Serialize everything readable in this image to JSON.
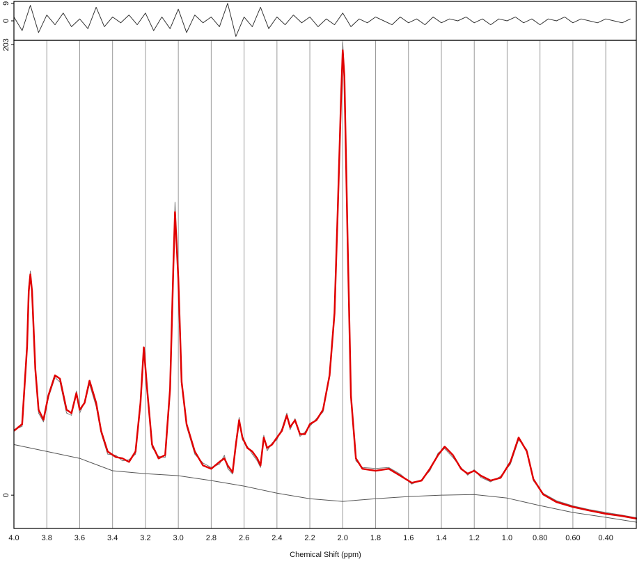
{
  "chart_data": [
    {
      "type": "line",
      "xlim": [
        4,
        0.21
      ],
      "ylim": [
        -10,
        10
      ],
      "yticks": [
        0,
        9
      ],
      "x": [
        4.0,
        3.95,
        3.9,
        3.85,
        3.8,
        3.75,
        3.7,
        3.65,
        3.6,
        3.55,
        3.5,
        3.45,
        3.4,
        3.35,
        3.3,
        3.25,
        3.2,
        3.15,
        3.1,
        3.05,
        3.0,
        2.95,
        2.9,
        2.85,
        2.8,
        2.75,
        2.7,
        2.65,
        2.6,
        2.55,
        2.5,
        2.45,
        2.4,
        2.35,
        2.3,
        2.25,
        2.2,
        2.15,
        2.1,
        2.05,
        2.0,
        1.95,
        1.9,
        1.85,
        1.8,
        1.75,
        1.7,
        1.65,
        1.6,
        1.55,
        1.5,
        1.45,
        1.4,
        1.35,
        1.3,
        1.25,
        1.2,
        1.15,
        1.1,
        1.05,
        1.0,
        0.95,
        0.9,
        0.85,
        0.8,
        0.75,
        0.7,
        0.65,
        0.6,
        0.55,
        0.5,
        0.45,
        0.4,
        0.35,
        0.3,
        0.25
      ],
      "series": [
        {
          "color": "#333333",
          "values": [
            2,
            -5,
            8,
            -6,
            3,
            -2,
            4,
            -3,
            1,
            -4,
            7,
            -3,
            2,
            -1,
            3,
            -2,
            4,
            -5,
            2,
            -4,
            6,
            -6,
            3,
            -1,
            2,
            -3,
            9,
            -8,
            2,
            -3,
            7,
            -4,
            2,
            -2,
            3,
            -1,
            2,
            -3,
            1,
            -2,
            4,
            -3,
            1,
            -1,
            2,
            0,
            -2,
            2,
            -1,
            1,
            -2,
            2,
            -1,
            1,
            0,
            2,
            -1,
            1,
            -2,
            1,
            0,
            2,
            -1,
            1,
            -2,
            1,
            0,
            2,
            -1,
            1,
            0,
            -1,
            1,
            0,
            -1,
            1
          ]
        }
      ]
    },
    {
      "type": "line",
      "x_label": "Chemical Shift (ppm)",
      "xlim": [
        4,
        0.21
      ],
      "ylim": [
        -15,
        205
      ],
      "yticks": [
        0,
        203
      ],
      "grid": true,
      "xticks": [
        {
          "value": 4,
          "label": "4.0"
        },
        3.8,
        3.6,
        3.4,
        3.2,
        {
          "value": 3,
          "label": "3.0"
        },
        2.8,
        2.6,
        2.4,
        2.2,
        {
          "value": 2,
          "label": "2.0"
        },
        1.8,
        1.6,
        1.4,
        1.2,
        {
          "value": 1,
          "label": "1.0"
        },
        {
          "value": 0.8,
          "label": "0.80"
        },
        {
          "value": 0.6,
          "label": "0.60"
        },
        {
          "value": 0.4,
          "label": "0.40"
        }
      ],
      "x": [
        4.0,
        3.95,
        3.92,
        3.91,
        3.9,
        3.89,
        3.87,
        3.85,
        3.82,
        3.79,
        3.75,
        3.72,
        3.68,
        3.65,
        3.62,
        3.6,
        3.57,
        3.54,
        3.5,
        3.47,
        3.43,
        3.38,
        3.34,
        3.3,
        3.26,
        3.23,
        3.21,
        3.19,
        3.16,
        3.12,
        3.08,
        3.05,
        3.03,
        3.02,
        3.0,
        2.98,
        2.95,
        2.9,
        2.85,
        2.8,
        2.75,
        2.72,
        2.7,
        2.67,
        2.65,
        2.63,
        2.61,
        2.58,
        2.55,
        2.52,
        2.5,
        2.48,
        2.46,
        2.43,
        2.4,
        2.37,
        2.34,
        2.32,
        2.29,
        2.26,
        2.23,
        2.2,
        2.16,
        2.12,
        2.08,
        2.05,
        2.03,
        2.01,
        2.0,
        1.99,
        1.97,
        1.95,
        1.92,
        1.88,
        1.8,
        1.72,
        1.65,
        1.58,
        1.52,
        1.47,
        1.42,
        1.38,
        1.33,
        1.28,
        1.24,
        1.2,
        1.16,
        1.1,
        1.04,
        0.98,
        0.93,
        0.88,
        0.84,
        0.78,
        0.7,
        0.6,
        0.5,
        0.4,
        0.3,
        0.21
      ],
      "series": [
        {
          "color": "#777777",
          "width": 1,
          "values": [
            29.5,
            31,
            68,
            94,
            101,
            93,
            55,
            37,
            33,
            44,
            53,
            51,
            37,
            36,
            47,
            37,
            42,
            50,
            40,
            28,
            18.5,
            18,
            15.5,
            16,
            18.5,
            40,
            65,
            49,
            21.5,
            17.5,
            17,
            46,
            106,
            132,
            96,
            50,
            31,
            18.5,
            14.5,
            12.5,
            14,
            18,
            12,
            9.5,
            24,
            35,
            25,
            22,
            18.5,
            15.5,
            12.5,
            27,
            20,
            23.5,
            25,
            30,
            37,
            29.5,
            34.5,
            26.5,
            28.5,
            31,
            34.5,
            37.5,
            55,
            84,
            131,
            183,
            204,
            190,
            111,
            43,
            15.5,
            12.5,
            12,
            12.5,
            9.5,
            5,
            7,
            11,
            19,
            21,
            17,
            12.5,
            9,
            11.5,
            8,
            6,
            8.5,
            14,
            25,
            20.5,
            6.5,
            0.8,
            -2.5,
            -4.8,
            -6.5,
            -7.8,
            -9,
            -10.2
          ]
        },
        {
          "color": "#e00000",
          "width": 2.5,
          "values": [
            29,
            32,
            67,
            92,
            99.5,
            92,
            57,
            38.5,
            34,
            45,
            54,
            52.5,
            38.5,
            37,
            46,
            38.5,
            41.6,
            51.6,
            41.6,
            29,
            19.7,
            17.2,
            16.6,
            15,
            19.7,
            41.6,
            66.6,
            47.9,
            22.8,
            16.6,
            18.1,
            47.9,
            104,
            127.6,
            97.9,
            51,
            32,
            19.7,
            13.4,
            11.9,
            15,
            16.6,
            13.4,
            10.3,
            22.8,
            33.8,
            26,
            21.3,
            19.7,
            16.6,
            13.4,
            26,
            21.3,
            22.8,
            26,
            29,
            36,
            30.7,
            33.8,
            27.5,
            27.5,
            32,
            33.8,
            38.5,
            54,
            82,
            129,
            179,
            200.5,
            188.6,
            113.5,
            44.7,
            16.6,
            11.9,
            11,
            11.9,
            8.8,
            5.6,
            6.6,
            11.9,
            18.1,
            21.9,
            18.1,
            11.9,
            9.7,
            11,
            8.8,
            6.6,
            7.8,
            15,
            26,
            19.7,
            7.2,
            0.3,
            -3.1,
            -5.3,
            -6.9,
            -8.4,
            -9.4,
            -10.6
          ]
        },
        {
          "color": "#555555",
          "width": 1,
          "x": [
            4.0,
            3.8,
            3.6,
            3.4,
            3.2,
            3.0,
            2.8,
            2.6,
            2.4,
            2.2,
            2.0,
            1.8,
            1.6,
            1.4,
            1.2,
            1.0,
            0.8,
            0.6,
            0.4,
            0.21
          ],
          "values": [
            22.8,
            19.7,
            16.6,
            11,
            9.7,
            8.8,
            6.6,
            4.1,
            0.9,
            -1.6,
            -2.8,
            -1.6,
            -0.6,
            0,
            0.3,
            -1.3,
            -4.7,
            -7.8,
            -10,
            -12.2
          ]
        }
      ]
    }
  ]
}
